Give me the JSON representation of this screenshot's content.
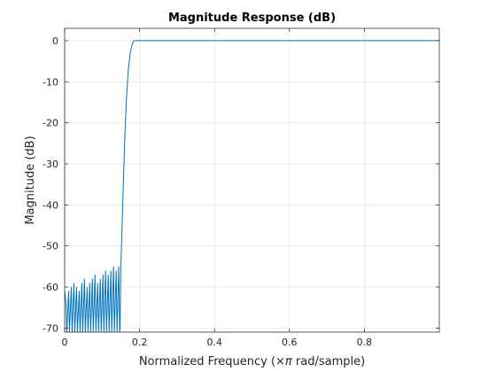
{
  "chart_data": {
    "type": "line",
    "title": "Magnitude Response (dB)",
    "xlabel_prefix": "Normalized Frequency  (",
    "xlabel_symbol": "×π",
    "xlabel_suffix": " rad/sample)",
    "ylabel": "Magnitude (dB)",
    "xlim": [
      0,
      1
    ],
    "ylim": [
      -71,
      3
    ],
    "xticks": [
      0,
      0.2,
      0.4,
      0.6,
      0.8
    ],
    "xtick_labels": [
      "0",
      "0.2",
      "0.4",
      "0.6",
      "0.8"
    ],
    "yticks": [
      0,
      -10,
      -20,
      -30,
      -40,
      -50,
      -60,
      -70
    ],
    "ytick_labels": [
      "0",
      "-10",
      "-20",
      "-30",
      "-40",
      "-50",
      "-60",
      "-70"
    ],
    "grid": true,
    "line_color": "#0072BD",
    "series": [
      {
        "stopband_edge": 0.148,
        "stopband_ripple_peaks_db": [
          -64,
          -61,
          -60,
          -59,
          -60,
          -61,
          -59,
          -58,
          -60,
          -59,
          -58,
          -57,
          -59,
          -58,
          -57,
          -56,
          -57,
          -56,
          -55,
          -56,
          -55
        ],
        "transition": [
          [
            0.148,
            -70
          ],
          [
            0.15,
            -55
          ],
          [
            0.155,
            -40
          ],
          [
            0.16,
            -25
          ],
          [
            0.165,
            -14
          ],
          [
            0.17,
            -7
          ],
          [
            0.175,
            -3
          ],
          [
            0.18,
            -1
          ],
          [
            0.185,
            0
          ],
          [
            1.0,
            0
          ]
        ]
      }
    ]
  }
}
